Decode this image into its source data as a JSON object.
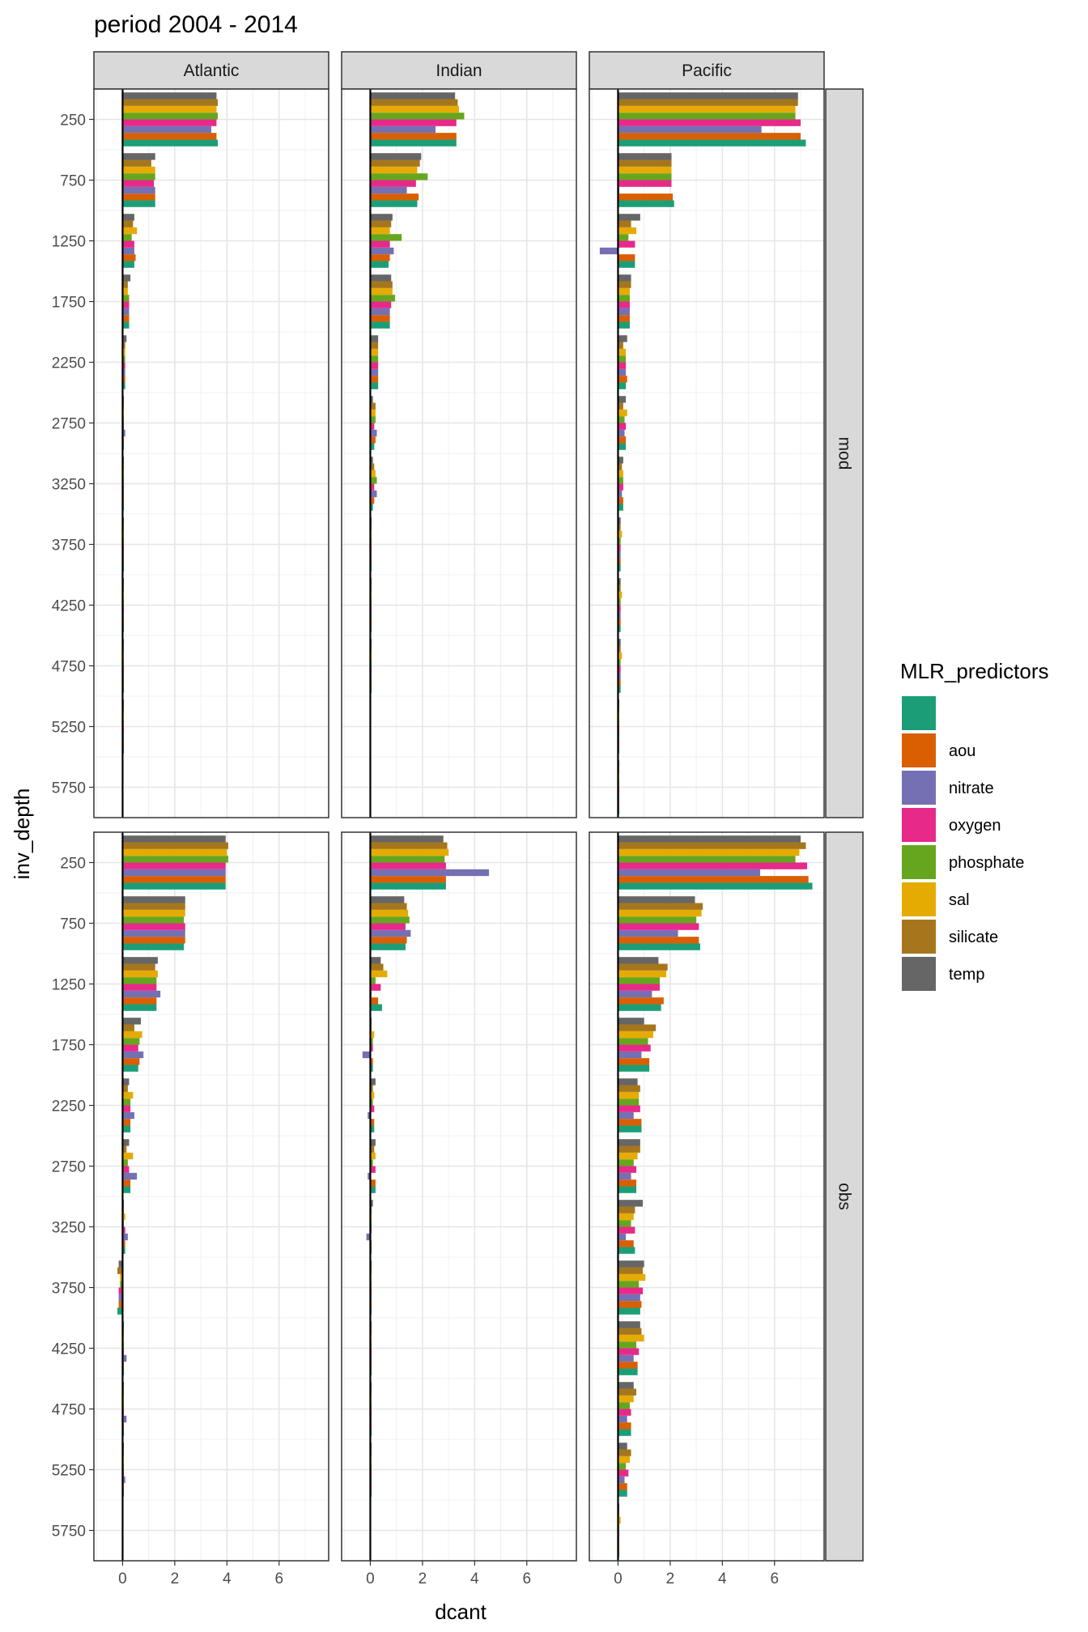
{
  "chart_data": {
    "type": "bar",
    "orientation": "horizontal",
    "title": "period 2004 - 2014",
    "xlabel": "dcant",
    "ylabel": "inv_depth",
    "xlim": [
      -1.1,
      7.9
    ],
    "x_ticks": [
      0,
      2,
      4,
      6
    ],
    "y_ticks": [
      250,
      750,
      1250,
      1750,
      2250,
      2750,
      3250,
      3750,
      4250,
      4750,
      5250,
      5750
    ],
    "y_reversed": true,
    "grid": true,
    "facet_cols": [
      "Atlantic",
      "Indian",
      "Pacific"
    ],
    "facet_rows": [
      "mod",
      "obs"
    ],
    "depths": [
      250,
      750,
      1250,
      1750,
      2250,
      2750,
      3250,
      3750,
      4250,
      4750,
      5250,
      5750
    ],
    "legend": {
      "title": "MLR_predictors",
      "position": "right",
      "entries": [
        {
          "label": "",
          "color": "#1B9E77"
        },
        {
          "label": "aou",
          "color": "#D95F02"
        },
        {
          "label": "nitrate",
          "color": "#7570B3"
        },
        {
          "label": "oxygen",
          "color": "#E7298A"
        },
        {
          "label": "phosphate",
          "color": "#66A61E"
        },
        {
          "label": "sal",
          "color": "#E6AB02"
        },
        {
          "label": "silicate",
          "color": "#A6761D"
        },
        {
          "label": "temp",
          "color": "#666666"
        }
      ]
    },
    "series_order": [
      "",
      "aou",
      "nitrate",
      "oxygen",
      "phosphate",
      "sal",
      "silicate",
      "temp"
    ],
    "panels": {
      "mod": {
        "Atlantic": [
          [
            3.65,
            3.6,
            3.4,
            3.6,
            3.65,
            3.6,
            3.65,
            3.6
          ],
          [
            1.25,
            1.25,
            1.25,
            1.2,
            1.25,
            1.25,
            1.1,
            1.25
          ],
          [
            0.45,
            0.5,
            0.45,
            0.45,
            0.35,
            0.55,
            0.4,
            0.45
          ],
          [
            0.25,
            0.25,
            0.25,
            0.25,
            0.25,
            0.2,
            0.2,
            0.3
          ],
          [
            0.1,
            0.1,
            0.1,
            0.1,
            0.1,
            0.1,
            0.1,
            0.15
          ],
          [
            0.05,
            0.05,
            0.1,
            0.05,
            0.05,
            0.05,
            0.05,
            0.05
          ],
          [
            0.05,
            0.05,
            0.05,
            0.05,
            0.05,
            0.05,
            0.05,
            0.05
          ],
          [
            0.05,
            0.05,
            0.05,
            0.05,
            0.05,
            0.05,
            0.05,
            0.05
          ],
          [
            0.05,
            0.05,
            0.05,
            0.05,
            0.05,
            0.05,
            0.05,
            0.05
          ],
          [
            0.05,
            0.05,
            0.05,
            0.05,
            0.05,
            0.05,
            0.05,
            0.05
          ],
          [
            0.05,
            0.05,
            0.05,
            0.05,
            0.05,
            0.05,
            0.05,
            0.05
          ],
          [
            0.0,
            0.0,
            0.0,
            0.0,
            0.0,
            0.0,
            0.0,
            0.0
          ]
        ],
        "Indian": [
          [
            3.3,
            3.3,
            2.5,
            3.3,
            3.6,
            3.4,
            3.35,
            3.25
          ],
          [
            1.8,
            1.85,
            1.4,
            1.75,
            2.2,
            1.8,
            1.9,
            1.95
          ],
          [
            0.7,
            0.75,
            0.9,
            0.75,
            1.2,
            0.75,
            0.8,
            0.85
          ],
          [
            0.75,
            0.75,
            0.75,
            0.8,
            0.95,
            0.85,
            0.85,
            0.8
          ],
          [
            0.3,
            0.3,
            0.3,
            0.3,
            0.3,
            0.3,
            0.3,
            0.3
          ],
          [
            0.15,
            0.2,
            0.25,
            0.15,
            0.2,
            0.2,
            0.2,
            0.1
          ],
          [
            0.1,
            0.15,
            0.25,
            0.15,
            0.25,
            0.2,
            0.15,
            0.1
          ],
          [
            0.05,
            0.05,
            0.05,
            0.05,
            0.05,
            0.05,
            0.05,
            0.05
          ],
          [
            0.05,
            0.05,
            0.05,
            0.05,
            0.05,
            0.05,
            0.05,
            0.05
          ],
          [
            0.05,
            0.05,
            0.05,
            0.05,
            0.05,
            0.05,
            0.05,
            0.05
          ],
          [
            0.0,
            0.0,
            0.0,
            0.0,
            0.0,
            0.0,
            0.0,
            0.0
          ],
          [
            0.0,
            0.0,
            0.0,
            0.0,
            0.0,
            0.0,
            0.0,
            0.0
          ]
        ],
        "Pacific": [
          [
            7.2,
            7.0,
            5.5,
            7.0,
            6.8,
            6.8,
            6.9,
            6.9
          ],
          [
            2.15,
            2.1,
            0.05,
            2.05,
            2.05,
            2.05,
            2.05,
            2.05
          ],
          [
            0.65,
            0.65,
            -0.7,
            0.65,
            0.4,
            0.7,
            0.5,
            0.85
          ],
          [
            0.45,
            0.45,
            0.45,
            0.45,
            0.45,
            0.45,
            0.5,
            0.5
          ],
          [
            0.3,
            0.35,
            0.3,
            0.3,
            0.3,
            0.3,
            0.2,
            0.35
          ],
          [
            0.3,
            0.3,
            0.25,
            0.3,
            0.25,
            0.35,
            0.2,
            0.3
          ],
          [
            0.2,
            0.2,
            0.15,
            0.2,
            0.2,
            0.2,
            0.15,
            0.2
          ],
          [
            0.1,
            0.1,
            0.1,
            0.1,
            0.1,
            0.15,
            0.1,
            0.1
          ],
          [
            0.1,
            0.1,
            0.1,
            0.1,
            0.1,
            0.15,
            0.1,
            0.1
          ],
          [
            0.1,
            0.1,
            0.1,
            0.1,
            0.1,
            0.15,
            0.1,
            0.1
          ],
          [
            0.05,
            0.05,
            0.05,
            0.05,
            0.05,
            0.05,
            0.05,
            0.05
          ],
          [
            0.05,
            0.05,
            0.05,
            0.05,
            0.05,
            0.05,
            0.05,
            0.05
          ]
        ]
      },
      "obs": {
        "Atlantic": [
          [
            3.95,
            3.95,
            3.95,
            3.95,
            4.05,
            4.0,
            4.05,
            3.95
          ],
          [
            2.35,
            2.4,
            2.4,
            2.4,
            2.35,
            2.4,
            2.4,
            2.4
          ],
          [
            1.3,
            1.3,
            1.45,
            1.3,
            1.3,
            1.35,
            1.25,
            1.35
          ],
          [
            0.6,
            0.65,
            0.8,
            0.6,
            0.65,
            0.75,
            0.45,
            0.7
          ],
          [
            0.3,
            0.3,
            0.45,
            0.3,
            0.3,
            0.4,
            0.2,
            0.25
          ],
          [
            0.3,
            0.3,
            0.55,
            0.25,
            0.2,
            0.4,
            0.15,
            0.25
          ],
          [
            0.1,
            0.1,
            0.2,
            0.1,
            0.05,
            0.1,
            0.05,
            0.05
          ],
          [
            -0.2,
            -0.15,
            -0.15,
            -0.15,
            -0.1,
            -0.1,
            -0.2,
            -0.15
          ],
          [
            0.05,
            0.05,
            0.15,
            0.05,
            0.05,
            0.05,
            0.05,
            0.05
          ],
          [
            0.05,
            0.05,
            0.15,
            0.05,
            0.05,
            0.05,
            0.05,
            0.05
          ],
          [
            0.05,
            0.05,
            0.1,
            0.05,
            0.05,
            0.05,
            0.05,
            0.05
          ],
          [
            0.0,
            0.0,
            0.0,
            0.0,
            0.0,
            0.0,
            0.0,
            0.0
          ]
        ],
        "Indian": [
          [
            2.9,
            2.9,
            4.55,
            2.9,
            2.85,
            3.0,
            2.95,
            2.8
          ],
          [
            1.35,
            1.4,
            1.55,
            1.35,
            1.5,
            1.45,
            1.4,
            1.3
          ],
          [
            0.45,
            0.3,
            0.05,
            0.4,
            0.2,
            0.65,
            0.5,
            0.4
          ],
          [
            0.1,
            0.1,
            -0.3,
            0.1,
            0.1,
            0.15,
            0.05,
            0.05
          ],
          [
            0.15,
            0.15,
            -0.1,
            0.15,
            0.1,
            0.15,
            0.1,
            0.2
          ],
          [
            0.2,
            0.2,
            -0.1,
            0.2,
            0.1,
            0.2,
            0.15,
            0.2
          ],
          [
            0.05,
            0.05,
            -0.15,
            0.05,
            0.05,
            0.05,
            0.05,
            0.1
          ],
          [
            0.05,
            0.05,
            0.05,
            0.05,
            0.05,
            0.05,
            0.05,
            0.05
          ],
          [
            0.05,
            0.05,
            0.05,
            0.05,
            0.05,
            0.05,
            0.05,
            0.05
          ],
          [
            0.05,
            0.05,
            0.05,
            0.05,
            0.05,
            0.05,
            0.05,
            0.05
          ],
          [
            0.05,
            0.05,
            0.05,
            0.05,
            0.05,
            0.05,
            0.05,
            0.05
          ],
          [
            0.0,
            0.0,
            0.0,
            0.0,
            0.0,
            0.0,
            0.0,
            0.0
          ]
        ],
        "Pacific": [
          [
            7.45,
            7.3,
            5.45,
            7.25,
            6.8,
            6.95,
            7.2,
            7.0
          ],
          [
            3.15,
            3.1,
            2.3,
            3.1,
            3.0,
            3.2,
            3.25,
            2.95
          ],
          [
            1.65,
            1.75,
            1.3,
            1.6,
            1.6,
            1.85,
            1.9,
            1.55
          ],
          [
            1.2,
            1.2,
            0.9,
            1.25,
            1.15,
            1.35,
            1.45,
            1.0
          ],
          [
            0.9,
            0.9,
            0.6,
            0.85,
            0.8,
            0.8,
            0.85,
            0.75
          ],
          [
            0.7,
            0.7,
            0.5,
            0.7,
            0.6,
            0.75,
            0.85,
            0.85
          ],
          [
            0.65,
            0.6,
            0.3,
            0.65,
            0.5,
            0.6,
            0.65,
            0.95
          ],
          [
            0.85,
            0.9,
            0.85,
            0.95,
            0.8,
            1.05,
            0.95,
            1.0
          ],
          [
            0.75,
            0.75,
            0.6,
            0.8,
            0.7,
            1.0,
            0.9,
            0.85
          ],
          [
            0.5,
            0.5,
            0.35,
            0.5,
            0.45,
            0.6,
            0.7,
            0.6
          ],
          [
            0.35,
            0.35,
            0.25,
            0.4,
            0.3,
            0.45,
            0.5,
            0.35
          ],
          [
            0.05,
            0.05,
            0.05,
            0.05,
            0.05,
            0.1,
            0.05,
            0.05
          ]
        ]
      }
    }
  }
}
